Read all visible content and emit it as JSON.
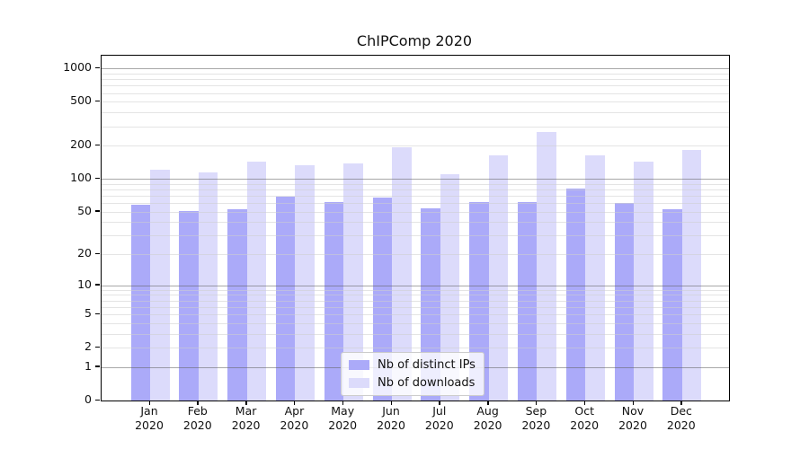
{
  "title": "ChIPComp 2020",
  "colors": {
    "bar_distinct_ips": "#abaaf9",
    "bar_downloads": "#dcdbfb",
    "grid_major": "#606060",
    "grid_minor": "#cdcdcd",
    "axis": "#000000",
    "legend_border": "#cccccc"
  },
  "legend": {
    "items": [
      {
        "label": "Nb of distinct IPs"
      },
      {
        "label": "Nb of downloads"
      }
    ]
  },
  "chart_data": {
    "type": "bar",
    "title": "ChIPComp 2020",
    "categories": [
      "Jan 2020",
      "Feb 2020",
      "Mar 2020",
      "Apr 2020",
      "May 2020",
      "Jun 2020",
      "Jul 2020",
      "Aug 2020",
      "Sep 2020",
      "Oct 2020",
      "Nov 2020",
      "Dec 2020"
    ],
    "series": [
      {
        "name": "Nb of distinct IPs",
        "color": "#abaaf9",
        "values": [
          58,
          51,
          53,
          68,
          61,
          67,
          54,
          61,
          61,
          81,
          60,
          53
        ]
      },
      {
        "name": "Nb of downloads",
        "color": "#dcdbfb",
        "values": [
          121,
          115,
          143,
          132,
          138,
          192,
          111,
          162,
          268,
          164,
          143,
          183
        ]
      }
    ],
    "xlabel": "",
    "ylabel": "",
    "yscale": "log1p",
    "yticks": [
      1000,
      500,
      200,
      100,
      50,
      20,
      10,
      5,
      2,
      1,
      0
    ],
    "ylim": [
      0,
      1100
    ],
    "grid": "horizontal",
    "legend_position": "lower center"
  }
}
